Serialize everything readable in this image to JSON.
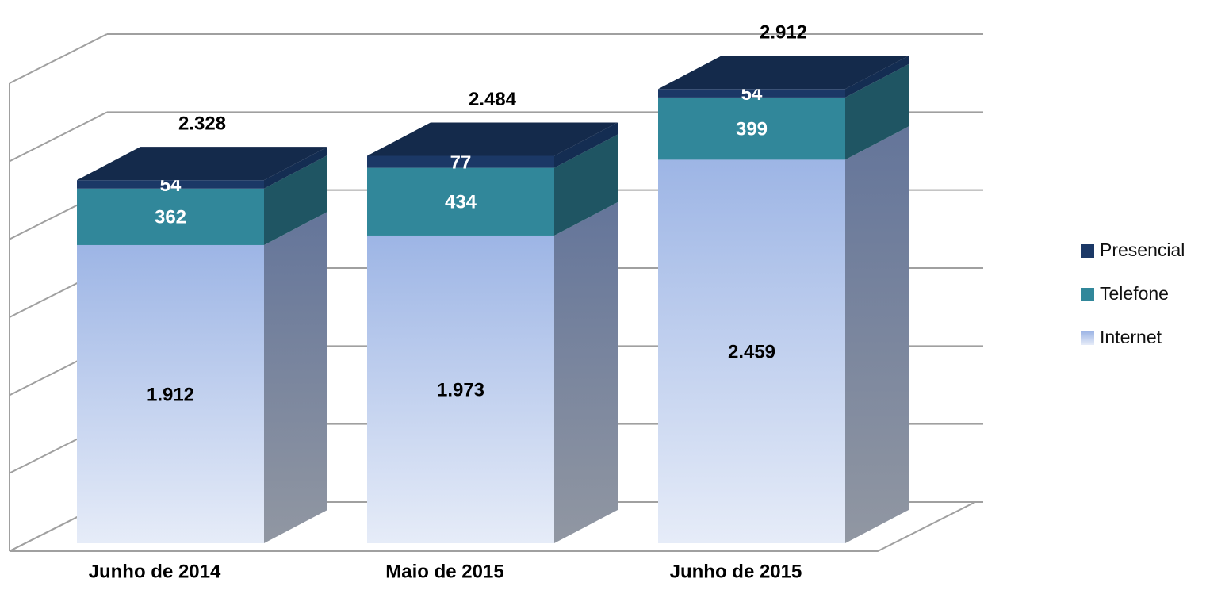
{
  "chart_data": {
    "type": "bar3d-stacked",
    "categories": [
      "Junho de 2014",
      "Maio de 2015",
      "Junho de 2015"
    ],
    "series": [
      {
        "name": "Internet",
        "color": "#a3bae8",
        "values": [
          1912,
          1973,
          2459
        ],
        "value_labels": [
          "1.912",
          "1.973",
          "2.459"
        ]
      },
      {
        "name": "Telefone",
        "color": "#31879a",
        "values": [
          362,
          434,
          399
        ]
      },
      {
        "name": "Presencial",
        "color": "#1b3866",
        "values": [
          54,
          77,
          54
        ]
      }
    ],
    "totals": {
      "values": [
        2328,
        2484,
        2912
      ],
      "value_labels": [
        "2.328",
        "2.484",
        "2.912"
      ]
    },
    "ylim": [
      0,
      3000
    ],
    "yticks": [
      0,
      500,
      1000,
      1500,
      2000,
      2500,
      3000
    ],
    "grid": true,
    "legend": "right"
  }
}
